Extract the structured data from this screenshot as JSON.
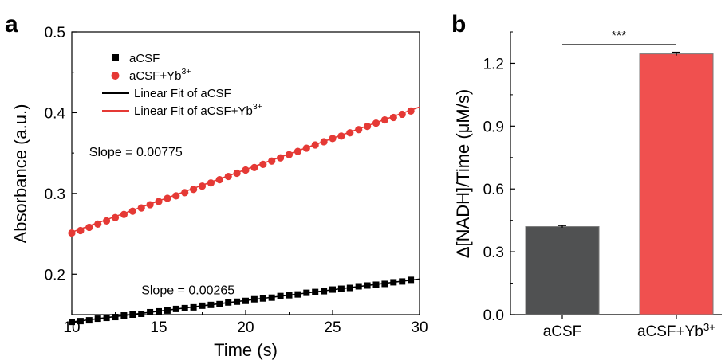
{
  "chart_data": [
    {
      "panel": "a",
      "type": "scatter",
      "xlabel": "Time (s)",
      "ylabel": "Absorbance (a.u.)",
      "xlim": [
        10,
        30
      ],
      "ylim": [
        0.15,
        0.5
      ],
      "xticks": [
        "10",
        "15",
        "20",
        "25",
        "30"
      ],
      "yticks": [
        "0.2",
        "0.3",
        "0.4",
        "0.5"
      ],
      "legend": {
        "placement": "top-left",
        "entries": [
          {
            "label": "aCSF",
            "sup": "",
            "kind": "square",
            "color": "#000000"
          },
          {
            "label": "aCSF+Yb",
            "sup": "3+",
            "kind": "circle",
            "color": "#e53935"
          },
          {
            "label": "Linear Fit of aCSF",
            "sup": "",
            "kind": "line",
            "color": "#000000"
          },
          {
            "label": "Linear Fit of aCSF+Yb",
            "sup": "3+",
            "kind": "line",
            "color": "#e53935"
          }
        ]
      },
      "series": [
        {
          "name": "aCSF",
          "marker": "square",
          "color": "#000000",
          "x": [
            10,
            10.5,
            11,
            11.5,
            12,
            12.5,
            13,
            13.5,
            14,
            14.5,
            15,
            15.5,
            16,
            16.5,
            17,
            17.5,
            18,
            18.5,
            19,
            19.5,
            20,
            20.5,
            21,
            21.5,
            22,
            22.5,
            23,
            23.5,
            24,
            24.5,
            25,
            25.5,
            26,
            26.5,
            27,
            27.5,
            28,
            28.5,
            29,
            29.5
          ],
          "y": [
            0.141,
            0.142,
            0.143,
            0.145,
            0.146,
            0.147,
            0.149,
            0.15,
            0.151,
            0.153,
            0.154,
            0.155,
            0.157,
            0.158,
            0.159,
            0.161,
            0.162,
            0.163,
            0.165,
            0.166,
            0.167,
            0.169,
            0.17,
            0.171,
            0.173,
            0.174,
            0.175,
            0.177,
            0.178,
            0.179,
            0.181,
            0.182,
            0.183,
            0.185,
            0.186,
            0.187,
            0.188,
            0.19,
            0.191,
            0.193
          ],
          "fit": {
            "x": [
              10,
              30
            ],
            "y": [
              0.141,
              0.194
            ]
          }
        },
        {
          "name": "aCSF+Yb3+",
          "marker": "circle",
          "color": "#e53935",
          "x": [
            10,
            10.5,
            11,
            11.5,
            12,
            12.5,
            13,
            13.5,
            14,
            14.5,
            15,
            15.5,
            16,
            16.5,
            17,
            17.5,
            18,
            18.5,
            19,
            19.5,
            20,
            20.5,
            21,
            21.5,
            22,
            22.5,
            23,
            23.5,
            24,
            24.5,
            25,
            25.5,
            26,
            26.5,
            27,
            27.5,
            28,
            28.5,
            29,
            29.5
          ],
          "y": [
            0.251,
            0.254,
            0.258,
            0.262,
            0.266,
            0.27,
            0.274,
            0.278,
            0.282,
            0.286,
            0.29,
            0.294,
            0.297,
            0.301,
            0.305,
            0.309,
            0.313,
            0.317,
            0.321,
            0.325,
            0.329,
            0.332,
            0.336,
            0.34,
            0.344,
            0.348,
            0.352,
            0.356,
            0.36,
            0.364,
            0.368,
            0.371,
            0.375,
            0.379,
            0.383,
            0.387,
            0.391,
            0.394,
            0.398,
            0.402
          ],
          "fit": {
            "x": [
              10,
              30
            ],
            "y": [
              0.252,
              0.407
            ]
          }
        }
      ],
      "annotations": [
        {
          "text": "Slope = 0.00775",
          "x": 11,
          "y": 0.346
        },
        {
          "text": "Slope = 0.00265",
          "x": 14,
          "y": 0.175
        }
      ]
    },
    {
      "panel": "b",
      "type": "bar",
      "ylabel": "Δ[NADH]/Time (μM/s)",
      "ylim": [
        0,
        1.35
      ],
      "yticks": [
        "0.0",
        "0.3",
        "0.6",
        "0.9",
        "1.2"
      ],
      "categories": [
        {
          "label": "aCSF",
          "sup": ""
        },
        {
          "label": "aCSF+Yb",
          "sup": "3+"
        }
      ],
      "values": [
        0.42,
        1.245
      ],
      "errors": [
        0.005,
        0.008
      ],
      "colors": [
        "#505152",
        "#f0504f"
      ],
      "significance": "***"
    }
  ]
}
